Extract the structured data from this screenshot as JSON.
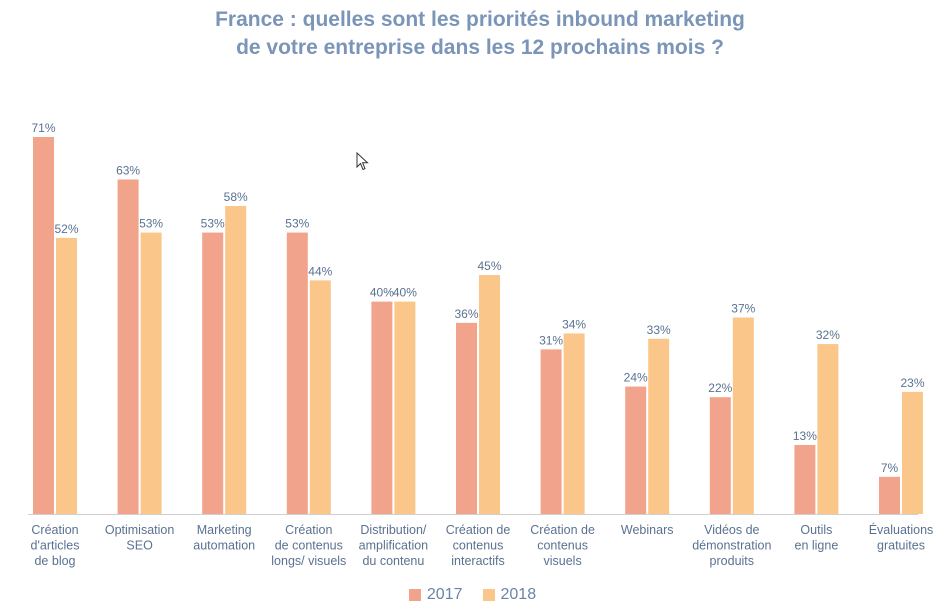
{
  "title": {
    "line1": "France : quelles sont les priorités inbound marketing",
    "line2": "de votre entreprise dans les 12 prochains mois ?"
  },
  "colors": {
    "2017": "#f2a38b",
    "2018": "#fbc68a",
    "text": "#5a7290",
    "axis": "#cfcfcf"
  },
  "chart_data": {
    "type": "bar",
    "title": "France : quelles sont les priorités inbound marketing de votre entreprise dans les 12 prochains mois ?",
    "categories": [
      [
        "Création",
        "d'articles",
        "de blog"
      ],
      [
        "Optimisation",
        "SEO"
      ],
      [
        "Marketing",
        "automation"
      ],
      [
        "Création",
        "de contenus",
        "longs/ visuels"
      ],
      [
        "Distribution/",
        "amplification",
        "du contenu"
      ],
      [
        "Création de",
        "contenus",
        "interactifs"
      ],
      [
        "Création de",
        "contenus",
        "visuels"
      ],
      [
        "Webinars"
      ],
      [
        "Vidéos de",
        "démonstration",
        "produits"
      ],
      [
        "Outils",
        "en ligne"
      ],
      [
        "Évaluations",
        "gratuites"
      ]
    ],
    "series": [
      {
        "name": "2017",
        "values": [
          71,
          63,
          53,
          53,
          40,
          36,
          31,
          24,
          22,
          13,
          7
        ],
        "labels": [
          "71%",
          "63%",
          "53%",
          "53%",
          "40%",
          "36%",
          "31%",
          "24%",
          "22%",
          "13%",
          "7%"
        ]
      },
      {
        "name": "2018",
        "values": [
          52,
          53,
          58,
          44,
          40,
          45,
          34,
          33,
          37,
          32,
          23
        ],
        "labels": [
          "52%",
          "53%",
          "58%",
          "44%",
          "40%",
          "45%",
          "34%",
          "33%",
          "37%",
          "32%",
          "23%"
        ]
      }
    ],
    "ylim": [
      0,
      71
    ],
    "grid": false,
    "legend": "bottom-center"
  },
  "legend": {
    "items": [
      "2017",
      "2018"
    ]
  }
}
